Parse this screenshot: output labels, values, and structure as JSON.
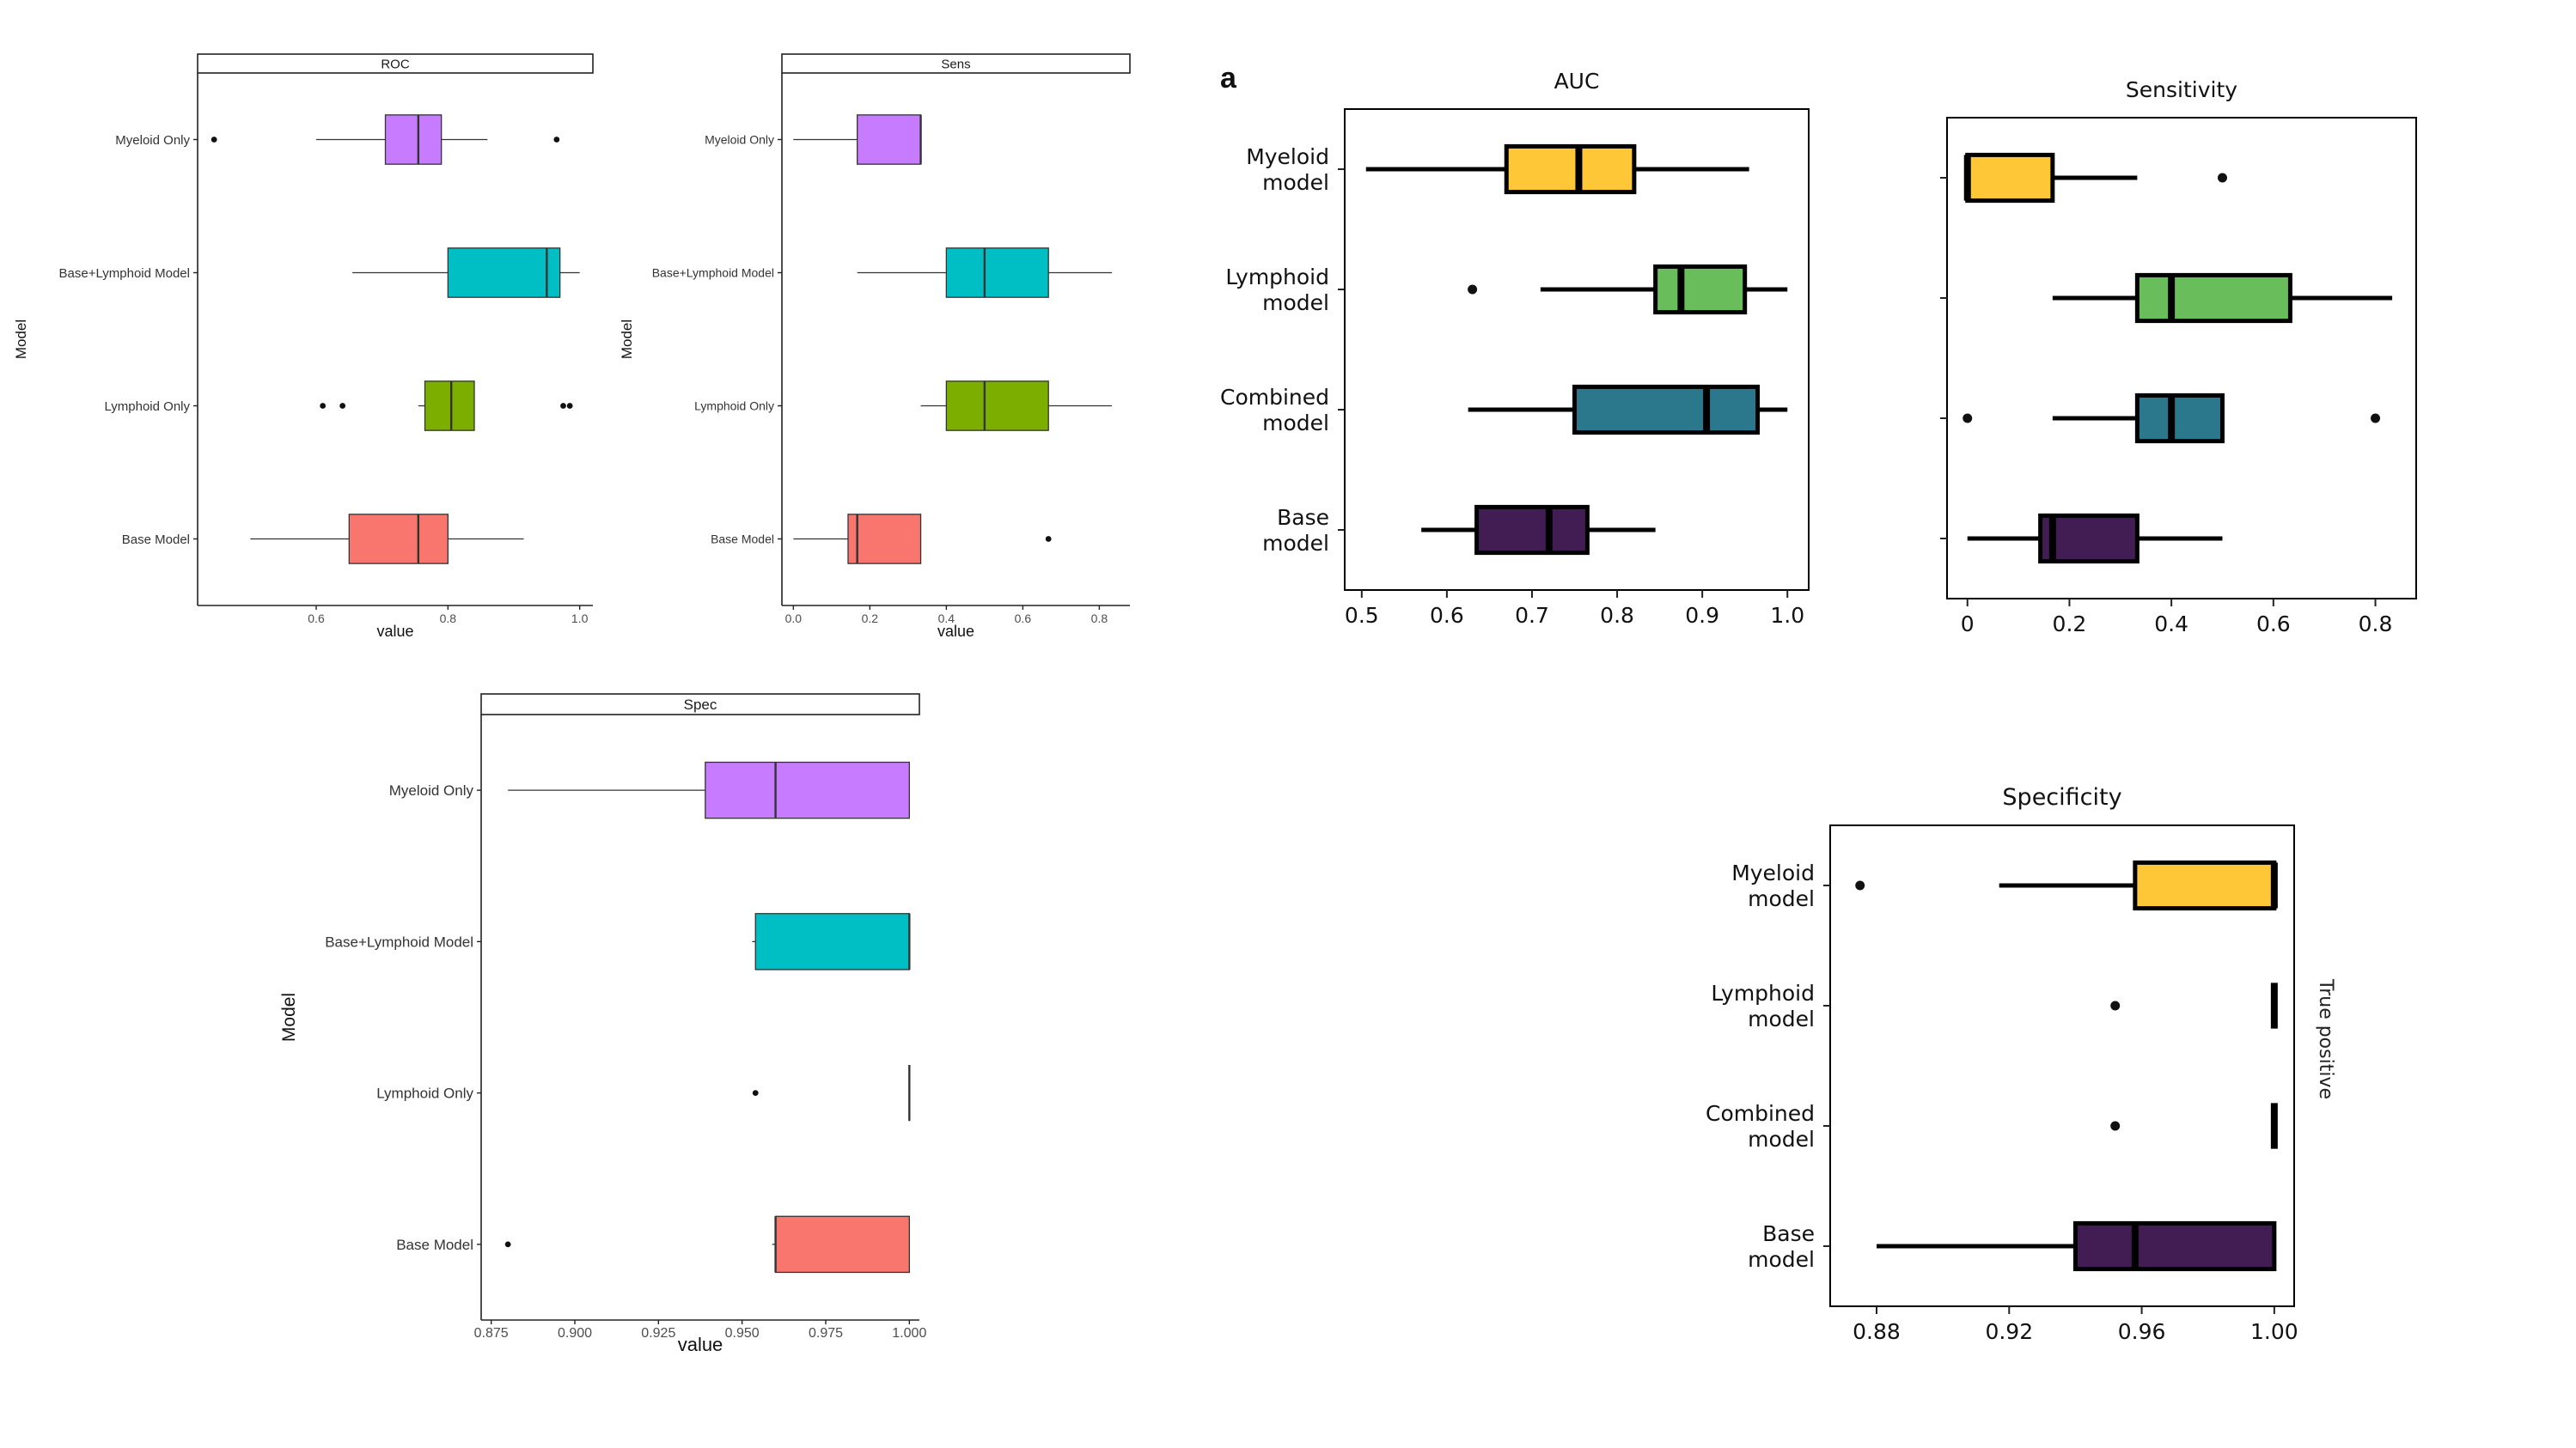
{
  "figure_label": "a",
  "palettes": {
    "gg": {
      "Myeloid Only": "#c77cff",
      "Base+Lymphoid Model": "#00bfc4",
      "Lymphoid Only": "#7cae00",
      "Base Model": "#f8766d"
    },
    "np": {
      "Myeloid\nmodel": "#fdc738",
      "Lymphoid\nmodel": "#69be5b",
      "Combined\nmodel": "#2b788c",
      "Base\nmodel": "#421d54"
    }
  },
  "chart_data": [
    {
      "id": "gg-roc",
      "style": "gg",
      "type": "boxplot",
      "orientation": "horizontal",
      "title": "ROC",
      "xlabel": "value",
      "ylabel": "Model",
      "xlim": [
        0.42,
        1.02
      ],
      "xticks": [
        0.6,
        0.8,
        1.0
      ],
      "xtick_labels": [
        "0.6",
        "0.8",
        "1.0"
      ],
      "categories": [
        "Myeloid Only",
        "Base+Lymphoid Model",
        "Lymphoid Only",
        "Base Model"
      ],
      "boxes": [
        {
          "whisker_low": 0.6,
          "q1": 0.705,
          "median": 0.755,
          "q3": 0.79,
          "whisker_high": 0.86,
          "outliers": [
            0.445,
            0.965
          ]
        },
        {
          "whisker_low": 0.655,
          "q1": 0.8,
          "median": 0.95,
          "q3": 0.97,
          "whisker_high": 1.0,
          "outliers": []
        },
        {
          "whisker_low": 0.755,
          "q1": 0.765,
          "median": 0.805,
          "q3": 0.84,
          "whisker_high": 0.84,
          "outliers": [
            0.61,
            0.64,
            0.975,
            0.985
          ]
        },
        {
          "whisker_low": 0.5,
          "q1": 0.65,
          "median": 0.755,
          "q3": 0.8,
          "whisker_high": 0.915,
          "outliers": []
        }
      ]
    },
    {
      "id": "gg-sens",
      "style": "gg",
      "type": "boxplot",
      "orientation": "horizontal",
      "title": "Sens",
      "xlabel": "value",
      "ylabel": "Model",
      "xlim": [
        -0.03,
        0.88
      ],
      "xticks": [
        0,
        0.2,
        0.4,
        0.6,
        0.8
      ],
      "xtick_labels": [
        "0.0",
        "0.2",
        "0.4",
        "0.6",
        "0.8"
      ],
      "categories": [
        "Myeloid Only",
        "Base+Lymphoid Model",
        "Lymphoid Only",
        "Base Model"
      ],
      "boxes": [
        {
          "whisker_low": 0.0,
          "q1": 0.167,
          "median": 0.333,
          "q3": 0.333,
          "whisker_high": 0.333,
          "outliers": []
        },
        {
          "whisker_low": 0.167,
          "q1": 0.4,
          "median": 0.5,
          "q3": 0.667,
          "whisker_high": 0.833,
          "outliers": []
        },
        {
          "whisker_low": 0.333,
          "q1": 0.4,
          "median": 0.5,
          "q3": 0.667,
          "whisker_high": 0.833,
          "outliers": []
        },
        {
          "whisker_low": 0.0,
          "q1": 0.143,
          "median": 0.167,
          "q3": 0.333,
          "whisker_high": 0.333,
          "outliers": [
            0.667
          ]
        }
      ]
    },
    {
      "id": "gg-spec",
      "style": "gg",
      "type": "boxplot",
      "orientation": "horizontal",
      "title": "Spec",
      "xlabel": "value",
      "ylabel": "Model",
      "xlim": [
        0.872,
        1.003
      ],
      "xticks": [
        0.875,
        0.9,
        0.925,
        0.95,
        0.975,
        1.0
      ],
      "xtick_labels": [
        "0.875",
        "0.900",
        "0.925",
        "0.950",
        "0.975",
        "1.000"
      ],
      "categories": [
        "Myeloid Only",
        "Base+Lymphoid Model",
        "Lymphoid Only",
        "Base Model"
      ],
      "boxes": [
        {
          "whisker_low": 0.88,
          "q1": 0.939,
          "median": 0.96,
          "q3": 1.0,
          "whisker_high": 1.0,
          "outliers": []
        },
        {
          "whisker_low": 0.953,
          "q1": 0.954,
          "median": 1.0,
          "q3": 1.0,
          "whisker_high": 1.0,
          "outliers": []
        },
        {
          "whisker_low": 1.0,
          "q1": 1.0,
          "median": 1.0,
          "q3": 1.0,
          "whisker_high": 1.0,
          "outliers": [
            0.954
          ]
        },
        {
          "whisker_low": 0.959,
          "q1": 0.96,
          "median": 0.96,
          "q3": 1.0,
          "whisker_high": 1.0,
          "outliers": [
            0.88
          ]
        }
      ]
    },
    {
      "id": "np-auc",
      "style": "np",
      "type": "boxplot",
      "orientation": "horizontal",
      "title": "AUC",
      "xlabel": "",
      "ylabel": "",
      "xlim": [
        0.48,
        1.025
      ],
      "xticks": [
        0.5,
        0.6,
        0.7,
        0.8,
        0.9,
        1.0
      ],
      "xtick_labels": [
        "0.5",
        "0.6",
        "0.7",
        "0.8",
        "0.9",
        "1.0"
      ],
      "categories": [
        "Myeloid\nmodel",
        "Lymphoid\nmodel",
        "Combined\nmodel",
        "Base\nmodel"
      ],
      "boxes": [
        {
          "whisker_low": 0.505,
          "q1": 0.67,
          "median": 0.755,
          "q3": 0.82,
          "whisker_high": 0.955,
          "outliers": []
        },
        {
          "whisker_low": 0.71,
          "q1": 0.845,
          "median": 0.875,
          "q3": 0.95,
          "whisker_high": 1.0,
          "outliers": [
            0.63
          ]
        },
        {
          "whisker_low": 0.625,
          "q1": 0.75,
          "median": 0.905,
          "q3": 0.965,
          "whisker_high": 1.0,
          "outliers": []
        },
        {
          "whisker_low": 0.57,
          "q1": 0.635,
          "median": 0.72,
          "q3": 0.765,
          "whisker_high": 0.845,
          "outliers": []
        }
      ]
    },
    {
      "id": "np-sens",
      "style": "np",
      "type": "boxplot",
      "orientation": "horizontal",
      "title": "Sensitivity",
      "xlabel": "",
      "ylabel": "",
      "xlim": [
        -0.04,
        0.88
      ],
      "xticks": [
        0,
        0.2,
        0.4,
        0.6,
        0.8
      ],
      "xtick_labels": [
        "0",
        "0.2",
        "0.4",
        "0.6",
        "0.8"
      ],
      "categories": [
        "Myeloid\nmodel",
        "Lymphoid\nmodel",
        "Combined\nmodel",
        "Base\nmodel"
      ],
      "show_category_labels": false,
      "boxes": [
        {
          "whisker_low": 0.0,
          "q1": 0.0,
          "median": 0.0,
          "q3": 0.167,
          "whisker_high": 0.333,
          "outliers": [
            0.5
          ]
        },
        {
          "whisker_low": 0.167,
          "q1": 0.333,
          "median": 0.4,
          "q3": 0.633,
          "whisker_high": 0.833,
          "outliers": []
        },
        {
          "whisker_low": 0.167,
          "q1": 0.333,
          "median": 0.4,
          "q3": 0.5,
          "whisker_high": 0.5,
          "outliers": [
            0.0,
            0.8
          ]
        },
        {
          "whisker_low": 0.0,
          "q1": 0.143,
          "median": 0.167,
          "q3": 0.333,
          "whisker_high": 0.5,
          "outliers": []
        }
      ]
    },
    {
      "id": "np-spec",
      "style": "np",
      "type": "boxplot",
      "orientation": "horizontal",
      "title": "Specificity",
      "xlabel": "",
      "ylabel": "",
      "xlim": [
        0.866,
        1.006
      ],
      "xticks": [
        0.88,
        0.92,
        0.96,
        1.0
      ],
      "xtick_labels": [
        "0.88",
        "0.92",
        "0.96",
        "1.00"
      ],
      "categories": [
        "Myeloid\nmodel",
        "Lymphoid\nmodel",
        "Combined\nmodel",
        "Base\nmodel"
      ],
      "boxes": [
        {
          "whisker_low": 0.917,
          "q1": 0.958,
          "median": 1.0,
          "q3": 1.0,
          "whisker_high": 1.0,
          "outliers": [
            0.875
          ]
        },
        {
          "whisker_low": 1.0,
          "q1": 1.0,
          "median": 1.0,
          "q3": 1.0,
          "whisker_high": 1.0,
          "outliers": [
            0.952
          ]
        },
        {
          "whisker_low": 1.0,
          "q1": 1.0,
          "median": 1.0,
          "q3": 1.0,
          "whisker_high": 1.0,
          "outliers": [
            0.952
          ]
        },
        {
          "whisker_low": 0.88,
          "q1": 0.94,
          "median": 0.958,
          "q3": 1.0,
          "whisker_high": 1.0,
          "outliers": []
        }
      ]
    }
  ],
  "cropped_side_label": "True positives"
}
